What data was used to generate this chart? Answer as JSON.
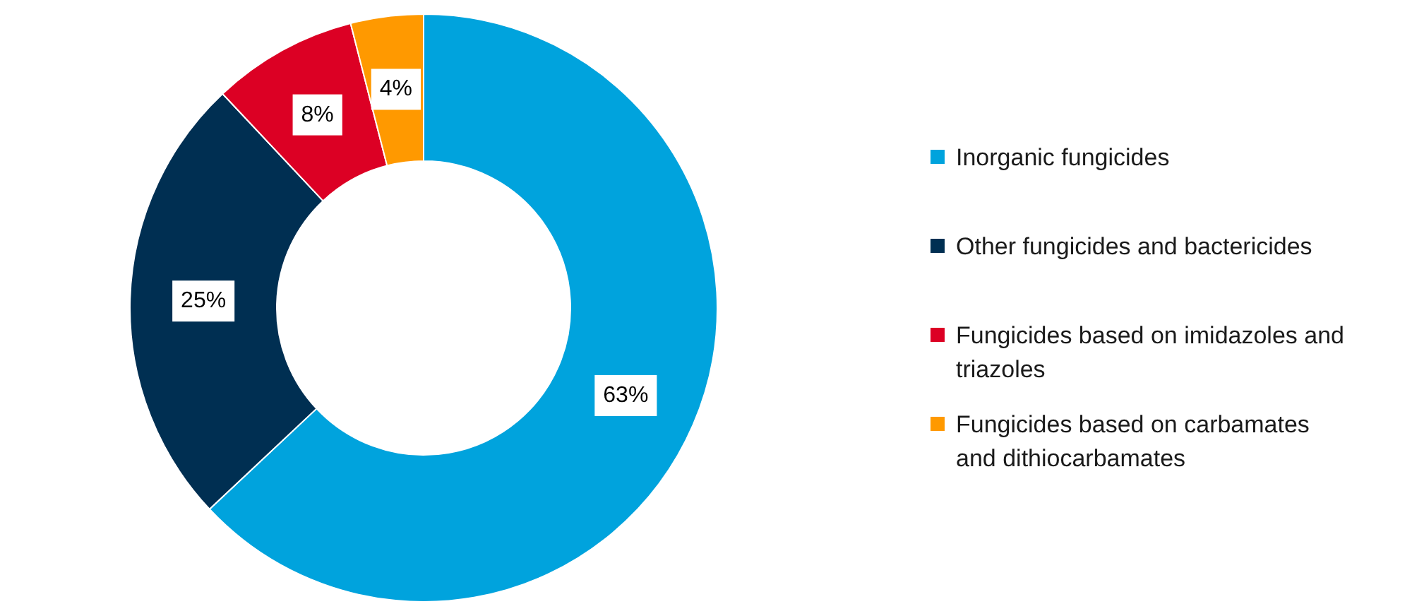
{
  "chart_data": {
    "type": "donut",
    "categories": [
      "Inorganic fungicides",
      "Other fungicides and bactericides",
      "Fungicides based on imidazoles and triazoles",
      "Fungicides based on carbamates and dithiocarbamates"
    ],
    "values": [
      63,
      25,
      8,
      4
    ],
    "colors": [
      "#00a3dd",
      "#002f52",
      "#dc0024",
      "#ff9900"
    ],
    "value_labels": [
      "63%",
      "25%",
      "8%",
      "4%"
    ],
    "legend": "right"
  }
}
